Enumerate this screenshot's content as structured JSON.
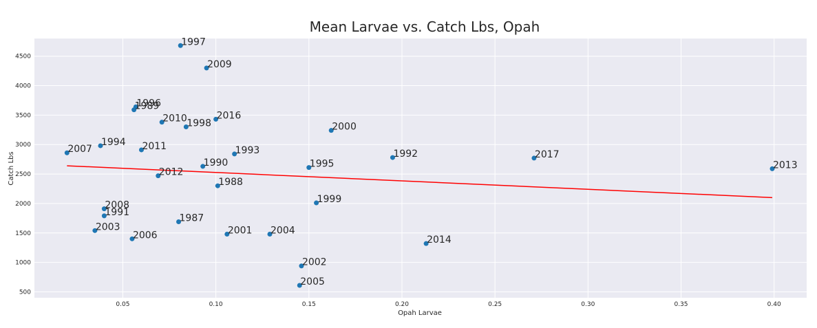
{
  "chart_data": {
    "type": "scatter",
    "title": "Mean Larvae vs. Catch Lbs, Opah",
    "xlabel": "Opah Larvae",
    "ylabel": "Catch Lbs",
    "xlim": [
      0.0025,
      0.4175
    ],
    "ylim": [
      400,
      4800
    ],
    "xticks": [
      0.05,
      0.1,
      0.15,
      0.2,
      0.25,
      0.3,
      0.35,
      0.4
    ],
    "xtick_labels": [
      "0.05",
      "0.10",
      "0.15",
      "0.20",
      "0.25",
      "0.30",
      "0.35",
      "0.40"
    ],
    "yticks": [
      500,
      1000,
      1500,
      2000,
      2500,
      3000,
      3500,
      4000,
      4500
    ],
    "ytick_labels": [
      "500",
      "1000",
      "1500",
      "2000",
      "2500",
      "3000",
      "3500",
      "4000",
      "4500"
    ],
    "grid": true,
    "points": [
      {
        "label": "1997",
        "x": 0.081,
        "y": 4680
      },
      {
        "label": "2009",
        "x": 0.095,
        "y": 4300
      },
      {
        "label": "1996",
        "x": 0.057,
        "y": 3640
      },
      {
        "label": "1989",
        "x": 0.056,
        "y": 3590
      },
      {
        "label": "2010",
        "x": 0.071,
        "y": 3380
      },
      {
        "label": "1998",
        "x": 0.084,
        "y": 3300
      },
      {
        "label": "2016",
        "x": 0.1,
        "y": 3430
      },
      {
        "label": "2000",
        "x": 0.162,
        "y": 3240
      },
      {
        "label": "2007",
        "x": 0.02,
        "y": 2860
      },
      {
        "label": "1994",
        "x": 0.038,
        "y": 2980
      },
      {
        "label": "2011",
        "x": 0.06,
        "y": 2910
      },
      {
        "label": "1993",
        "x": 0.11,
        "y": 2840
      },
      {
        "label": "1990",
        "x": 0.093,
        "y": 2630
      },
      {
        "label": "1995",
        "x": 0.15,
        "y": 2610
      },
      {
        "label": "1992",
        "x": 0.195,
        "y": 2780
      },
      {
        "label": "2017",
        "x": 0.271,
        "y": 2770
      },
      {
        "label": "2013",
        "x": 0.399,
        "y": 2590
      },
      {
        "label": "2012",
        "x": 0.069,
        "y": 2470
      },
      {
        "label": "1988",
        "x": 0.101,
        "y": 2300
      },
      {
        "label": "1999",
        "x": 0.154,
        "y": 2010
      },
      {
        "label": "2008",
        "x": 0.04,
        "y": 1910
      },
      {
        "label": "1991",
        "x": 0.04,
        "y": 1790
      },
      {
        "label": "1987",
        "x": 0.08,
        "y": 1690
      },
      {
        "label": "2003",
        "x": 0.035,
        "y": 1540
      },
      {
        "label": "2001",
        "x": 0.106,
        "y": 1480
      },
      {
        "label": "2004",
        "x": 0.129,
        "y": 1480
      },
      {
        "label": "2006",
        "x": 0.055,
        "y": 1400
      },
      {
        "label": "2014",
        "x": 0.213,
        "y": 1320
      },
      {
        "label": "2002",
        "x": 0.146,
        "y": 940
      },
      {
        "label": "2005",
        "x": 0.145,
        "y": 610
      }
    ],
    "trendline": {
      "x": [
        0.02,
        0.399
      ],
      "y": [
        2640,
        2100
      ]
    },
    "colors": {
      "point": "#1f77b4",
      "trendline": "#ff0000",
      "background": "#eaeaf2",
      "grid": "#ffffff"
    }
  }
}
